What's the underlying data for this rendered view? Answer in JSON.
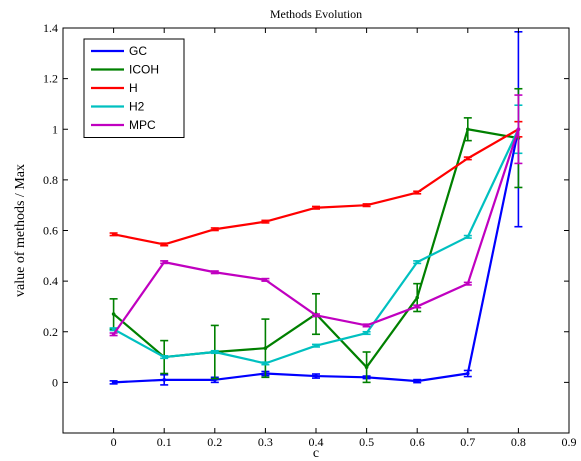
{
  "chart_data": {
    "type": "line",
    "title": "Methods Evolution",
    "xlabel": "c",
    "ylabel": "value of methods / Max",
    "xlim": [
      -0.1,
      0.9
    ],
    "ylim": [
      -0.2,
      1.4
    ],
    "xticks": [
      0,
      0.1,
      0.2,
      0.3,
      0.4,
      0.5,
      0.6,
      0.7,
      0.8,
      0.9
    ],
    "xtick_labels": [
      "0",
      "0.1",
      "0.2",
      "0.3",
      "0.4",
      "0.5",
      "0.6",
      "0.7",
      "0.8",
      "0.9"
    ],
    "yticks": [
      0,
      0.2,
      0.4,
      0.6,
      0.8,
      1,
      1.2,
      1.4
    ],
    "ytick_labels": [
      "0",
      "0.2",
      "0.4",
      "0.6",
      "0.8",
      "1",
      "1.2",
      "1.4"
    ],
    "grid": false,
    "legend_position": "top-left",
    "x": [
      0,
      0.1,
      0.2,
      0.3,
      0.4,
      0.5,
      0.6,
      0.7,
      0.8
    ],
    "series": [
      {
        "name": "GC",
        "color": "#0000ff",
        "values": [
          0.0,
          0.01,
          0.01,
          0.035,
          0.025,
          0.02,
          0.005,
          0.035,
          1.0
        ],
        "errors": [
          0.006,
          0.02,
          0.01,
          0.008,
          0.008,
          0.005,
          0.006,
          0.012,
          0.385
        ]
      },
      {
        "name": "ICOH",
        "color": "#008000",
        "values": [
          0.27,
          0.1,
          0.12,
          0.135,
          0.27,
          0.06,
          0.335,
          1.0,
          0.965
        ],
        "errors": [
          0.06,
          0.065,
          0.105,
          0.115,
          0.08,
          0.06,
          0.055,
          0.045,
          0.195
        ]
      },
      {
        "name": "H",
        "color": "#ff0000",
        "values": [
          0.585,
          0.545,
          0.605,
          0.635,
          0.69,
          0.7,
          0.75,
          0.885,
          1.0
        ],
        "errors": [
          0.005,
          0.005,
          0.005,
          0.005,
          0.005,
          0.005,
          0.005,
          0.005,
          0.03
        ]
      },
      {
        "name": "H2",
        "color": "#00c0c0",
        "values": [
          0.21,
          0.1,
          0.12,
          0.075,
          0.145,
          0.195,
          0.475,
          0.575,
          1.0
        ],
        "errors": [
          0.005,
          0.005,
          0.005,
          0.005,
          0.005,
          0.005,
          0.005,
          0.005,
          0.095
        ]
      },
      {
        "name": "MPC",
        "color": "#c000c0",
        "values": [
          0.19,
          0.475,
          0.435,
          0.405,
          0.265,
          0.225,
          0.3,
          0.39,
          1.0
        ],
        "errors": [
          0.005,
          0.005,
          0.005,
          0.005,
          0.005,
          0.005,
          0.005,
          0.005,
          0.135
        ]
      }
    ]
  }
}
